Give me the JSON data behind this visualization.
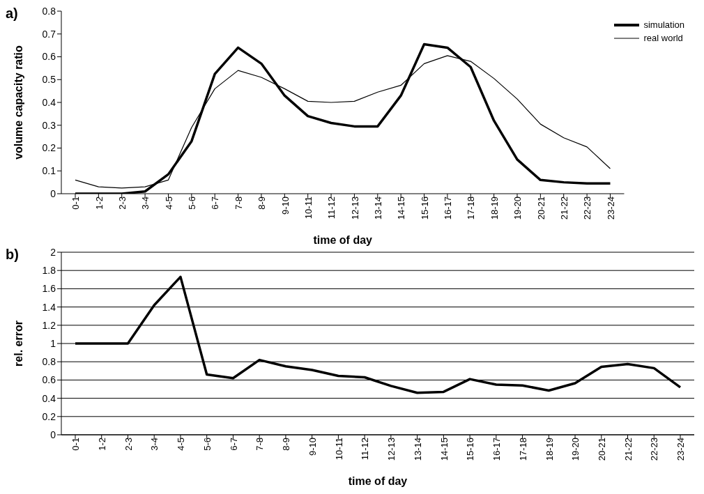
{
  "chart_data": [
    {
      "type": "line",
      "title": "a)",
      "xlabel": "time of day",
      "ylabel": "volume capacity ratio",
      "categories": [
        "0-1",
        "1-2",
        "2-3",
        "3-4",
        "4-5",
        "5-6",
        "6-7",
        "7-8",
        "8-9",
        "9-10",
        "10-11",
        "11-12",
        "12-13",
        "13-14",
        "14-15",
        "15-16",
        "16-17",
        "17-18",
        "18-19",
        "19-20",
        "20-21",
        "21-22",
        "22-23",
        "23-24"
      ],
      "series": [
        {
          "name": "simulation",
          "color": "#000000",
          "values": [
            0,
            0,
            0,
            0.01,
            0.085,
            0.23,
            0.525,
            0.64,
            0.57,
            0.43,
            0.34,
            0.31,
            0.295,
            0.295,
            0.43,
            0.655,
            0.64,
            0.555,
            0.32,
            0.15,
            0.06,
            0.05,
            0.045,
            0.045
          ]
        },
        {
          "name": "real world",
          "color": "#000000",
          "values": [
            0.06,
            0.03,
            0.025,
            0.03,
            0.06,
            0.29,
            0.46,
            0.54,
            0.51,
            0.46,
            0.405,
            0.4,
            0.405,
            0.445,
            0.475,
            0.57,
            0.605,
            0.58,
            0.505,
            0.415,
            0.305,
            0.245,
            0.205,
            0.11
          ]
        }
      ],
      "ylim": [
        0,
        0.8
      ],
      "yticks": [
        0,
        0.1,
        0.2,
        0.3,
        0.4,
        0.5,
        0.6,
        0.7,
        0.8
      ],
      "grid": false,
      "legend": "top right",
      "marker": "none",
      "line_style": "solid"
    },
    {
      "type": "line",
      "title": "b)",
      "xlabel": "time of day",
      "ylabel": "rel. error",
      "categories": [
        "0-1",
        "1-2",
        "2-3",
        "3-4",
        "4-5",
        "5-6",
        "6-7",
        "7-8",
        "8-9",
        "9-10",
        "10-11",
        "11-12",
        "12-13",
        "13-14",
        "14-15",
        "15-16",
        "16-17",
        "17-18",
        "18-19",
        "19-20",
        "20-21",
        "21-22",
        "22-23",
        "23-24"
      ],
      "series": [
        {
          "color": "#000000",
          "values": [
            1,
            1,
            1,
            1.42,
            1.73,
            0.66,
            0.62,
            0.82,
            0.75,
            0.71,
            0.645,
            0.63,
            0.535,
            0.46,
            0.47,
            0.61,
            0.55,
            0.54,
            0.485,
            0.565,
            0.745,
            0.775,
            0.73,
            0.52
          ]
        }
      ],
      "ylim": [
        0,
        2
      ],
      "yticks": [
        0,
        0.2,
        0.4,
        0.6,
        0.8,
        1,
        1.2,
        1.4,
        1.6,
        1.8,
        2
      ],
      "grid": "y",
      "legend": false,
      "marker": "none",
      "line_style": "solid"
    }
  ]
}
